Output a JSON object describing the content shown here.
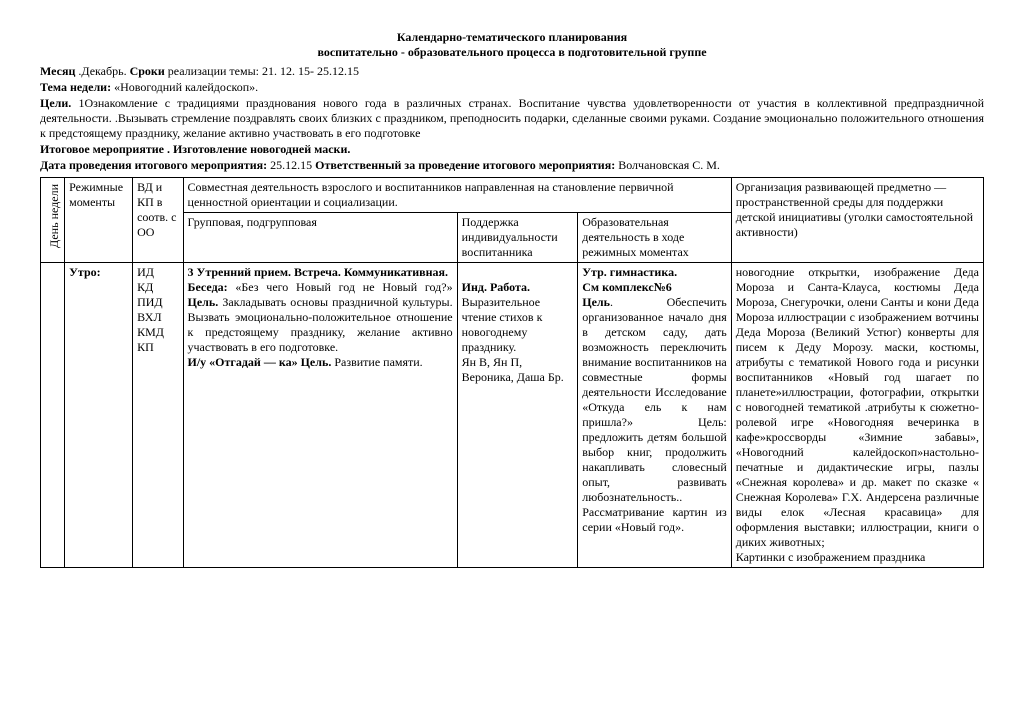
{
  "title": "Календарно-тематического планирования",
  "subtitle": "воспитательно - образовательного процесса в подготовительной группе",
  "meta": {
    "month_label": "Месяц",
    "month_value": ".Декабрь.",
    "terms_label": "Сроки",
    "terms_text": " реализации темы: 21. 12. 15- 25.12.15",
    "theme_label": "Тема недели:",
    "theme_value": " «Новогодний калейдоскоп».",
    "goals_label": "Цели.",
    "goals_text": " 1Ознакомление с традициями празднования нового года в различных странах. Воспитание чувства удовлетворенности от участия в коллективной предпраздничной деятельности. .Вызывать стремление поздравлять своих близких с праздником, преподносить подарки, сделанные своими руками. Создание эмоционально положительного отношения к предстоящему празднику, желание активно участвовать в его подготовке",
    "final_label": "Итоговое мероприятие . Изготовление новогодней маски.",
    "date_label": "Дата проведения итогового мероприятия:",
    "date_value": " 25.12.15 ",
    "resp_label": "Ответственный за проведение итогового мероприятия:",
    "resp_value": " Волчановская С. М."
  },
  "head": {
    "day": "День недели",
    "mode": "Режимные моменты",
    "vd": "ВД и КП в соотв. с ОО",
    "joint": "Совместная деятельность взрослого и воспитанников направленная на становление первичной ценностной ориентации и социализации.",
    "group": "Групповая, подгрупповая",
    "ind": "Поддержка индивидуальности воспитанника",
    "edu": "Образовательная деятельность в ходе режимных моментах",
    "org": "Организация развивающей предметно — пространственной среды для поддержки детской инициативы (уголки самостоятельной активности)"
  },
  "row": {
    "mode": "Утро:",
    "vd": "ИД\nКД\nПИД\nВХЛ\nКМД\nКП",
    "group_strong1": "3 Утренний прием. Встреча. Коммуникативная.",
    "group_text1a": "Беседа: ",
    "group_text1b": "«Без чего Новый год не Новый год?» ",
    "group_goal": "Цель.",
    "group_text1c": " Закладывать основы праздничной культуры. Вызвать эмоционально-положительное отношение к предстоящему празднику, желание активно участвовать в его подготовке.",
    "group_text2a": "И/у «Отгадай — ка» Цель.",
    "group_text2b": " Развитие памяти.",
    "ind_strong": "Инд. Работа.",
    "ind_text": " Выразительное чтение стихов к новогоднему празднику.\nЯн В, Ян П, Вероника, Даша Бр.",
    "edu_strong1": "Утр. гимнастика.",
    "edu_strong2": "См комплекс№6",
    "edu_goal": " Цель",
    "edu_text": ". Обеспечить организованное начало дня в детском саду, дать возможность переключить внимание воспитанников на совместные формы деятельности Исследование «Откуда ель к нам пришла?» Цель: предложить детям большой выбор книг, продолжить накапливать словесный опыт, развивать любознательность.. Рассматривание картин из серии «Новый год».",
    "org_text": "новогодние открытки, изображение Деда Мороза и Санта-Клауса, костюмы Деда Мороза, Снегурочки, олени Санты и кони Деда Мороза иллюстрации с изображением вотчины Деда Мороза (Великий Устюг) конверты для писем к Деду Морозу. маски, костюмы, атрибуты с тематикой Нового года и рисунки воспитанников «Новый год шагает по планете»иллюстрации, фотографии, открытки с новогодней тематикой .атрибуты к сюжетно-ролевой игре «Новогодняя вечеринка в кафе»кроссворды «Зимние забавы», «Новогодний калейдоскоп»настольно-печатные и дидактические игры, пазлы «Снежная королева» и др. макет по сказке « Снежная Королева» Г.Х. Андерсена различные виды елок «Лесная красавица» для оформления выставки; иллюстрации, книги о диких животных;\nКартинки с изображением праздника"
  }
}
